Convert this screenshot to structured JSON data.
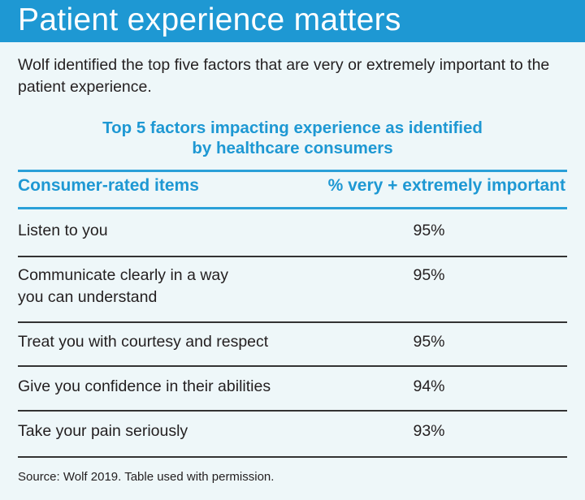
{
  "header": {
    "title": "Patient experience matters"
  },
  "intro": "Wolf identified the top five factors that are very or extremely important to the patient experience.",
  "table": {
    "title_line1": "Top 5 factors impacting experience as identified",
    "title_line2": "by healthcare consumers",
    "columns": [
      "Consumer-rated items",
      "% very + extremely important"
    ],
    "rows": [
      {
        "item": "Listen to you",
        "value": "95%"
      },
      {
        "item_line1": "Communicate clearly in a way",
        "item_line2": "you can understand",
        "value": "95%"
      },
      {
        "item": "Treat you with courtesy and respect",
        "value": "95%"
      },
      {
        "item": "Give you confidence in their abilities",
        "value": "94%"
      },
      {
        "item": "Take your pain seriously",
        "value": "93%"
      }
    ],
    "source": "Source: Wolf 2019. Table used with permission."
  },
  "colors": {
    "accent": "#1e98d3",
    "background": "#eef7f9",
    "text": "#231f20"
  }
}
